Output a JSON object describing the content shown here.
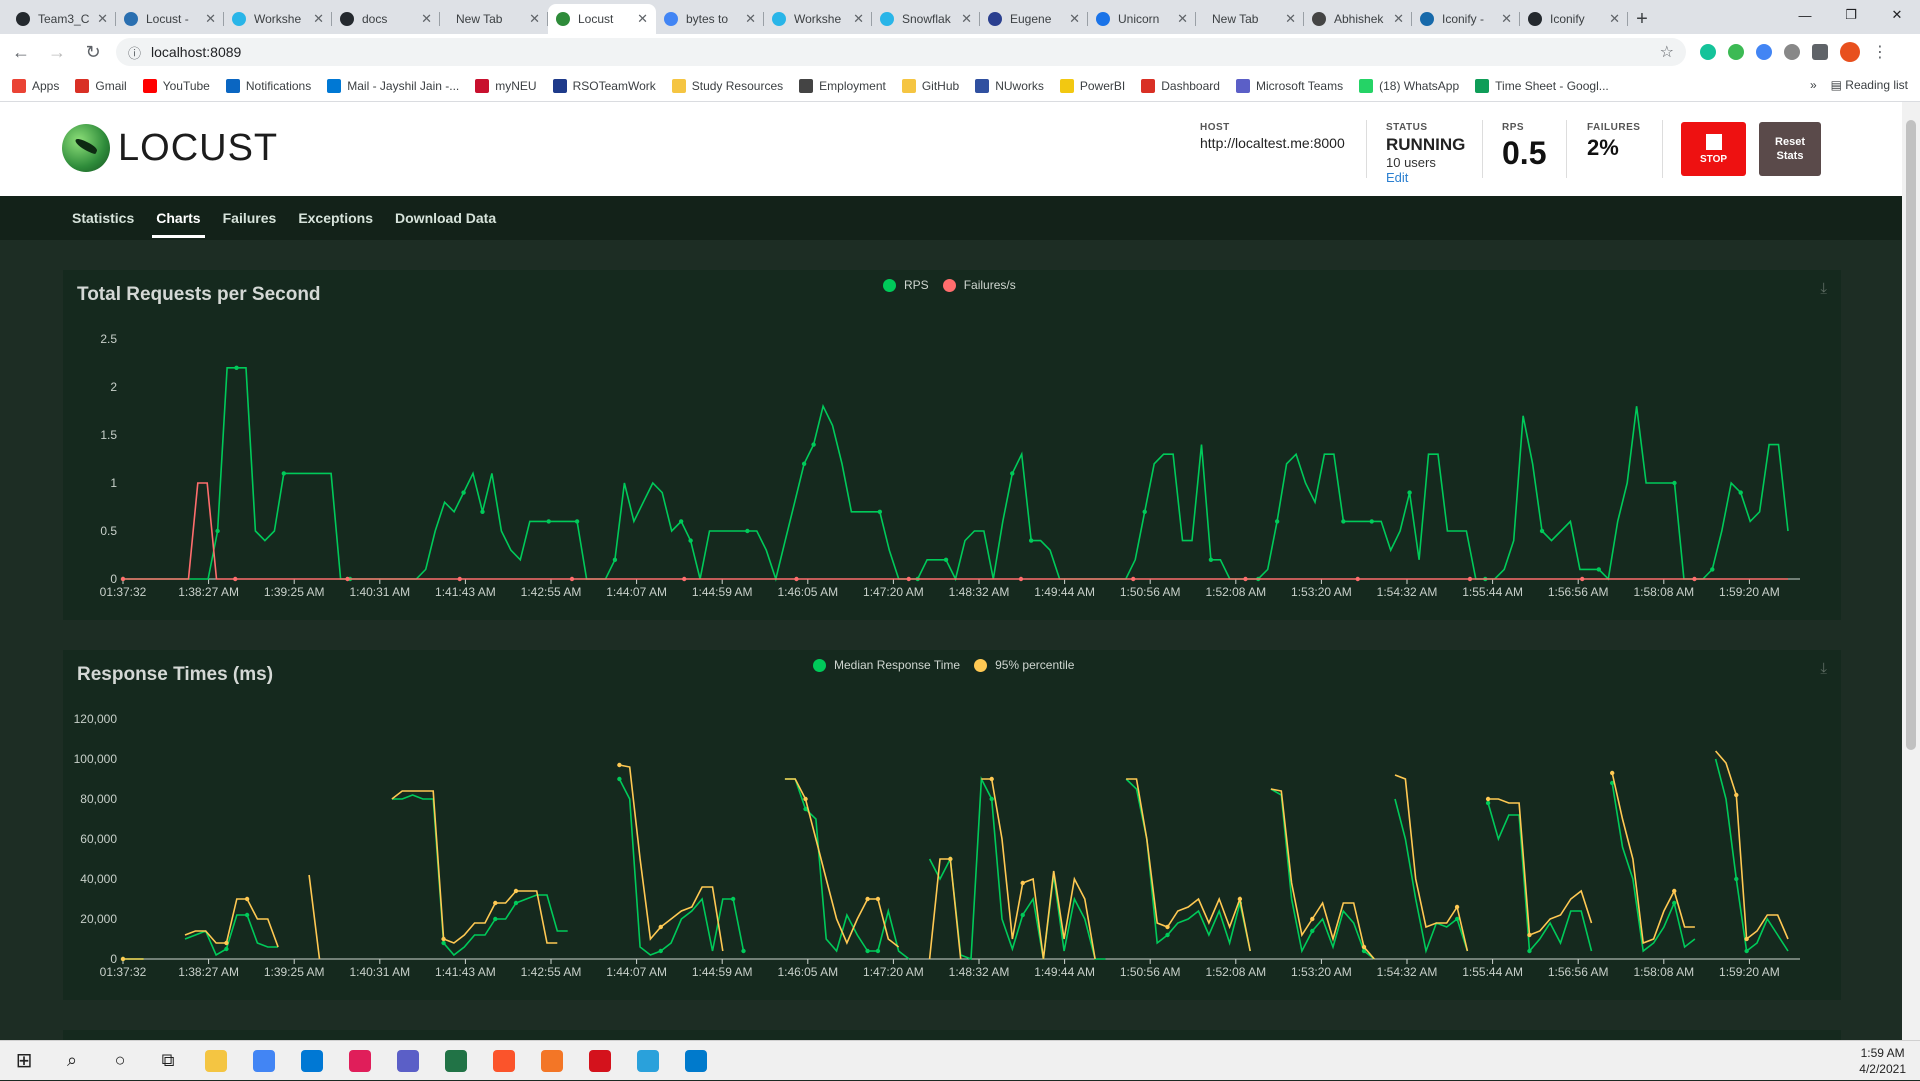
{
  "browser": {
    "tabs": [
      {
        "label": "Team3_C",
        "color": "#24292e"
      },
      {
        "label": "Locust - ",
        "color": "#2a6fb0"
      },
      {
        "label": "Workshe",
        "color": "#29b5e8"
      },
      {
        "label": "docs",
        "color": "#24292e"
      },
      {
        "label": "New Tab",
        "color": ""
      },
      {
        "label": "Locust",
        "color": "#2e8b3a",
        "active": true
      },
      {
        "label": "bytes to",
        "color": "#4285f4"
      },
      {
        "label": "Workshe",
        "color": "#29b5e8"
      },
      {
        "label": "Snowflak",
        "color": "#29b5e8"
      },
      {
        "label": "Eugene",
        "color": "#2a3f8f"
      },
      {
        "label": "Unicorn",
        "color": "#1a73e8"
      },
      {
        "label": "New Tab",
        "color": ""
      },
      {
        "label": "Abhishek",
        "color": "#444"
      },
      {
        "label": "Iconify - ",
        "color": "#1769aa"
      },
      {
        "label": "Iconify",
        "color": "#24292e"
      }
    ],
    "url": "localhost:8089",
    "bookmarks": [
      {
        "label": "Apps",
        "color": "#ea4335"
      },
      {
        "label": "Gmail",
        "color": "#d93025"
      },
      {
        "label": "YouTube",
        "color": "#ff0000"
      },
      {
        "label": "Notifications",
        "color": "#0a66c2"
      },
      {
        "label": "Mail - Jayshil Jain -...",
        "color": "#0078d4"
      },
      {
        "label": "myNEU",
        "color": "#c8102e"
      },
      {
        "label": "RSOTeamWork",
        "color": "#1e3a8a"
      },
      {
        "label": "Study Resources",
        "color": "#f5c542"
      },
      {
        "label": "Employment",
        "color": "#444"
      },
      {
        "label": "GitHub",
        "color": "#f5c542"
      },
      {
        "label": "NUworks",
        "color": "#3050a0"
      },
      {
        "label": "PowerBI",
        "color": "#f2c811"
      },
      {
        "label": "Dashboard",
        "color": "#d93025"
      },
      {
        "label": "Microsoft Teams",
        "color": "#5b5fc7"
      },
      {
        "label": "(18) WhatsApp",
        "color": "#25d366"
      },
      {
        "label": "Time Sheet - Googl...",
        "color": "#0f9d58"
      }
    ],
    "reading_list": "Reading list",
    "more": "»"
  },
  "locust": {
    "logo_text": "LOCUST",
    "host_label": "HOST",
    "host_value": "http://localtest.me:8000",
    "status_label": "STATUS",
    "status_value": "RUNNING",
    "users": "10 users",
    "edit": "Edit",
    "rps_label": "RPS",
    "rps_value": "0.5",
    "failures_label": "FAILURES",
    "failures_value": "2%",
    "stop_label": "STOP",
    "reset_label": "Reset Stats",
    "nav": [
      "Statistics",
      "Charts",
      "Failures",
      "Exceptions",
      "Download Data"
    ],
    "active_nav": "Charts"
  },
  "chart_data": [
    {
      "type": "line",
      "title": "Total Requests per Second",
      "ylim": [
        0,
        2.5
      ],
      "yticks": [
        "0",
        "0.5",
        "1",
        "1.5",
        "2",
        "2.5"
      ],
      "xticks": [
        "01:37:32",
        "1:38:27 AM",
        "1:39:25 AM",
        "1:40:31 AM",
        "1:41:43 AM",
        "1:42:55 AM",
        "1:44:07 AM",
        "1:44:59 AM",
        "1:46:05 AM",
        "1:47:20 AM",
        "1:48:32 AM",
        "1:49:44 AM",
        "1:50:56 AM",
        "1:52:08 AM",
        "1:53:20 AM",
        "1:54:32 AM",
        "1:55:44 AM",
        "1:56:56 AM",
        "1:58:08 AM",
        "1:59:20 AM"
      ],
      "legend": "top-center",
      "series": [
        {
          "name": "RPS",
          "color": "#00ca5a",
          "values": [
            0,
            0,
            0,
            0,
            0,
            0,
            0,
            0,
            0,
            0,
            0.5,
            2.2,
            2.2,
            2.2,
            0.5,
            0.4,
            0.5,
            1.1,
            1.1,
            1.1,
            1.1,
            1.1,
            1.1,
            0,
            0,
            0,
            0,
            0,
            0,
            0,
            0,
            0,
            0.1,
            0.5,
            0.8,
            0.7,
            0.9,
            1.1,
            0.7,
            1.1,
            0.5,
            0.3,
            0.2,
            0.6,
            0.6,
            0.6,
            0.6,
            0.6,
            0.6,
            0,
            0,
            0,
            0.2,
            1,
            0.6,
            0.8,
            1,
            0.9,
            0.5,
            0.6,
            0.4,
            0,
            0.5,
            0.5,
            0.5,
            0.5,
            0.5,
            0.5,
            0.3,
            0,
            0.4,
            0.8,
            1.2,
            1.4,
            1.8,
            1.6,
            1.2,
            0.7,
            0.7,
            0.7,
            0.7,
            0.3,
            0,
            0,
            0,
            0.2,
            0.2,
            0.2,
            0,
            0.4,
            0.5,
            0.5,
            0,
            0.6,
            1.1,
            1.3,
            0.4,
            0.4,
            0.3,
            0,
            0,
            0,
            0,
            0,
            0,
            0,
            0,
            0.2,
            0.7,
            1.2,
            1.3,
            1.3,
            0.4,
            0.4,
            1.4,
            0.2,
            0.2,
            0,
            0,
            0,
            0,
            0.1,
            0.6,
            1.2,
            1.3,
            1,
            0.8,
            1.3,
            1.3,
            0.6,
            0.6,
            0.6,
            0.6,
            0.6,
            0.3,
            0.5,
            0.9,
            0.2,
            1.3,
            1.3,
            0.5,
            0.5,
            0.5,
            0,
            0,
            0,
            0.1,
            0.4,
            1.7,
            1.2,
            0.5,
            0.4,
            0.5,
            0.6,
            0.1,
            0.1,
            0.1,
            0,
            0.6,
            1,
            1.8,
            1,
            1,
            1,
            1,
            0,
            0,
            0,
            0.1,
            0.5,
            1,
            0.9,
            0.6,
            0.7,
            1.4,
            1.4,
            0.5
          ]
        },
        {
          "name": "Failures/s",
          "color": "#ff6d6d",
          "values": [
            0,
            0,
            0,
            0,
            0,
            0,
            0,
            0,
            1,
            1,
            0,
            0,
            0,
            0,
            0,
            0,
            0,
            0,
            0,
            0,
            0,
            0,
            0,
            0,
            0,
            0,
            0,
            0,
            0,
            0,
            0,
            0,
            0,
            0,
            0,
            0,
            0,
            0,
            0,
            0,
            0,
            0,
            0,
            0,
            0,
            0,
            0,
            0,
            0,
            0,
            0,
            0,
            0,
            0,
            0,
            0,
            0,
            0,
            0,
            0,
            0,
            0,
            0,
            0,
            0,
            0,
            0,
            0,
            0,
            0,
            0,
            0,
            0,
            0,
            0,
            0,
            0,
            0,
            0,
            0,
            0,
            0,
            0,
            0,
            0,
            0,
            0,
            0,
            0,
            0,
            0,
            0,
            0,
            0,
            0,
            0,
            0,
            0,
            0,
            0,
            0,
            0,
            0,
            0,
            0,
            0,
            0,
            0,
            0,
            0,
            0,
            0,
            0,
            0,
            0,
            0,
            0,
            0,
            0,
            0,
            0,
            0,
            0,
            0,
            0,
            0,
            0,
            0,
            0,
            0,
            0,
            0,
            0,
            0,
            0,
            0,
            0,
            0,
            0,
            0,
            0,
            0,
            0,
            0,
            0,
            0,
            0,
            0,
            0,
            0,
            0,
            0,
            0,
            0,
            0,
            0,
            0,
            0,
            0,
            0,
            0,
            0,
            0,
            0,
            0,
            0,
            0,
            0,
            0,
            0,
            0,
            0,
            0,
            0,
            0,
            0,
            0,
            0,
            0
          ]
        }
      ]
    },
    {
      "type": "line",
      "title": "Response Times (ms)",
      "ylim": [
        0,
        120000
      ],
      "yticks": [
        "0",
        "20,000",
        "40,000",
        "60,000",
        "80,000",
        "100,000",
        "120,000"
      ],
      "xticks": [
        "01:37:32",
        "1:38:27 AM",
        "1:39:25 AM",
        "1:40:31 AM",
        "1:41:43 AM",
        "1:42:55 AM",
        "1:44:07 AM",
        "1:44:59 AM",
        "1:46:05 AM",
        "1:47:20 AM",
        "1:48:32 AM",
        "1:49:44 AM",
        "1:50:56 AM",
        "1:52:08 AM",
        "1:53:20 AM",
        "1:54:32 AM",
        "1:55:44 AM",
        "1:56:56 AM",
        "1:58:08 AM",
        "1:59:20 AM"
      ],
      "legend": "top-center",
      "series": [
        {
          "name": "Median Response Time",
          "color": "#00ca5a",
          "values": [
            0,
            0,
            0,
            null,
            null,
            null,
            10000,
            12000,
            14000,
            2000,
            5000,
            22000,
            22000,
            8000,
            6000,
            6000,
            null,
            null,
            null,
            null,
            null,
            null,
            null,
            null,
            null,
            null,
            80000,
            80000,
            82000,
            80000,
            80000,
            8000,
            2000,
            6000,
            12000,
            12000,
            20000,
            20000,
            28000,
            30000,
            32000,
            32000,
            14000,
            14000,
            null,
            null,
            null,
            null,
            90000,
            80000,
            6000,
            2000,
            4000,
            8000,
            20000,
            24000,
            30000,
            4000,
            30000,
            30000,
            4000,
            null,
            null,
            null,
            90000,
            90000,
            75000,
            70000,
            10000,
            4000,
            22000,
            12000,
            4000,
            4000,
            24000,
            4000,
            0,
            null,
            50000,
            40000,
            50000,
            2000,
            0,
            90000,
            80000,
            20000,
            5000,
            22000,
            30000,
            0,
            42000,
            4000,
            30000,
            20000,
            0,
            0,
            null,
            90000,
            85000,
            60000,
            8000,
            12000,
            18000,
            20000,
            24000,
            12000,
            24000,
            8000,
            28000,
            4000,
            null,
            85000,
            82000,
            30000,
            4000,
            14000,
            20000,
            6000,
            24000,
            18000,
            4000,
            0,
            null,
            80000,
            60000,
            30000,
            4000,
            18000,
            16000,
            20000,
            4000,
            null,
            78000,
            60000,
            72000,
            72000,
            4000,
            10000,
            18000,
            8000,
            24000,
            24000,
            4000,
            null,
            88000,
            56000,
            40000,
            4000,
            8000,
            16000,
            28000,
            6000,
            10000,
            null,
            100000,
            80000,
            40000,
            4000,
            8000,
            20000,
            12000,
            4000
          ]
        },
        {
          "name": "95% percentile",
          "color": "#ffc953",
          "values": [
            0,
            0,
            0,
            null,
            null,
            null,
            12000,
            14000,
            14000,
            8000,
            8000,
            30000,
            30000,
            20000,
            20000,
            6000,
            null,
            null,
            42000,
            0,
            null,
            null,
            null,
            null,
            null,
            null,
            80000,
            84000,
            84000,
            84000,
            84000,
            10000,
            8000,
            12000,
            18000,
            18000,
            28000,
            28000,
            34000,
            34000,
            34000,
            8000,
            8000,
            null,
            null,
            null,
            null,
            null,
            97000,
            96000,
            50000,
            10000,
            16000,
            20000,
            24000,
            26000,
            36000,
            36000,
            4000,
            null,
            null,
            null,
            null,
            null,
            90000,
            90000,
            80000,
            60000,
            40000,
            20000,
            8000,
            20000,
            30000,
            30000,
            10000,
            6000,
            null,
            null,
            0,
            50000,
            50000,
            0,
            null,
            90000,
            90000,
            60000,
            10000,
            38000,
            40000,
            0,
            44000,
            10000,
            40000,
            30000,
            0,
            null,
            null,
            90000,
            90000,
            60000,
            18000,
            16000,
            24000,
            26000,
            30000,
            18000,
            30000,
            16000,
            30000,
            4000,
            null,
            85000,
            84000,
            38000,
            12000,
            20000,
            28000,
            10000,
            28000,
            28000,
            6000,
            0,
            null,
            92000,
            90000,
            40000,
            16000,
            18000,
            18000,
            26000,
            4000,
            null,
            80000,
            80000,
            78000,
            78000,
            12000,
            14000,
            20000,
            22000,
            30000,
            34000,
            18000,
            null,
            93000,
            70000,
            50000,
            8000,
            10000,
            24000,
            34000,
            16000,
            16000,
            null,
            104000,
            98000,
            82000,
            10000,
            14000,
            22000,
            22000,
            10000
          ]
        }
      ]
    }
  ],
  "taskbar": {
    "time": "1:59 AM",
    "date": "4/2/2021",
    "apps": [
      "#f4c542",
      "#4285f4",
      "#0078d4",
      "#e01e5a",
      "#5b5fc7",
      "#217346",
      "#fb542b",
      "#f37626",
      "#d4121c",
      "#2aa1db",
      "#007acc"
    ]
  }
}
